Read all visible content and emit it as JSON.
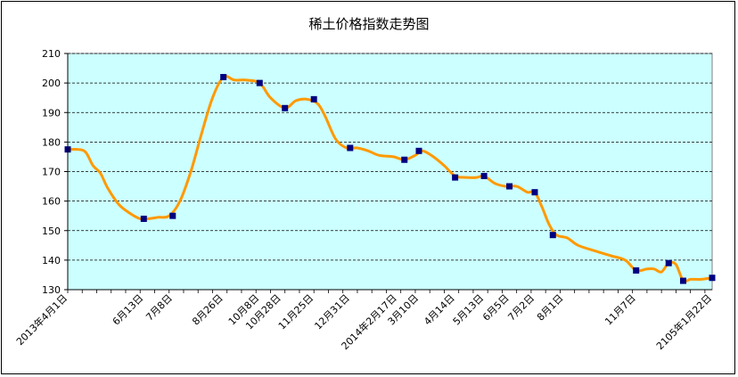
{
  "chart_data": {
    "type": "line",
    "title": "稀土价格指数走势图",
    "xlabel": "",
    "ylabel": "",
    "ylim": [
      130,
      210
    ],
    "yticks": [
      130,
      140,
      150,
      160,
      170,
      180,
      190,
      200,
      210
    ],
    "grid": "horizontal-dashed",
    "legend": "none",
    "colors": {
      "plot_bg": "#ccffff",
      "line": "#ff9900",
      "marker": "#000080",
      "grid": "#000000"
    },
    "num_points": 179,
    "x_tick_labels": [
      {
        "index": 0,
        "label": "2013年4月1日"
      },
      {
        "index": 21,
        "label": "6月13日"
      },
      {
        "index": 29,
        "label": "7月8日"
      },
      {
        "index": 43,
        "label": "8月26日"
      },
      {
        "index": 53,
        "label": "10月8日"
      },
      {
        "index": 59,
        "label": "10月28日"
      },
      {
        "index": 68,
        "label": "11月25日"
      },
      {
        "index": 78,
        "label": "12月31日"
      },
      {
        "index": 91,
        "label": "2014年2月17日"
      },
      {
        "index": 97,
        "label": "3月10日"
      },
      {
        "index": 107,
        "label": "4月14日"
      },
      {
        "index": 115,
        "label": "5月13日"
      },
      {
        "index": 122,
        "label": "6月5日"
      },
      {
        "index": 129,
        "label": "7月2日"
      },
      {
        "index": 137,
        "label": "8月1日"
      },
      {
        "index": 157,
        "label": "11月7日"
      },
      {
        "index": 178,
        "label": "2105年1月22日"
      }
    ],
    "series": [
      {
        "values": [
          {
            "i": 0,
            "y": 177.5
          },
          {
            "i": 3,
            "y": 177.5
          },
          {
            "i": 5,
            "y": 176.5
          },
          {
            "i": 7,
            "y": 172
          },
          {
            "i": 9,
            "y": 169.5
          },
          {
            "i": 11,
            "y": 164.5
          },
          {
            "i": 14,
            "y": 159
          },
          {
            "i": 17,
            "y": 156
          },
          {
            "i": 20,
            "y": 154
          },
          {
            "i": 22,
            "y": 154
          },
          {
            "i": 25,
            "y": 154.5
          },
          {
            "i": 28,
            "y": 155
          },
          {
            "i": 31,
            "y": 160
          },
          {
            "i": 34,
            "y": 170
          },
          {
            "i": 37,
            "y": 183
          },
          {
            "i": 40,
            "y": 195
          },
          {
            "i": 43,
            "y": 202
          },
          {
            "i": 46,
            "y": 201
          },
          {
            "i": 49,
            "y": 201
          },
          {
            "i": 53,
            "y": 200
          },
          {
            "i": 56,
            "y": 195
          },
          {
            "i": 60,
            "y": 191.5
          },
          {
            "i": 63,
            "y": 194
          },
          {
            "i": 66,
            "y": 194.5
          },
          {
            "i": 69,
            "y": 193
          },
          {
            "i": 71,
            "y": 189
          },
          {
            "i": 74,
            "y": 181
          },
          {
            "i": 77,
            "y": 178
          },
          {
            "i": 80,
            "y": 178
          },
          {
            "i": 83,
            "y": 177
          },
          {
            "i": 86,
            "y": 175.5
          },
          {
            "i": 90,
            "y": 175
          },
          {
            "i": 93,
            "y": 174
          },
          {
            "i": 96,
            "y": 175.5
          },
          {
            "i": 98,
            "y": 177
          },
          {
            "i": 101,
            "y": 175
          },
          {
            "i": 104,
            "y": 172
          },
          {
            "i": 107,
            "y": 168.5
          },
          {
            "i": 110,
            "y": 168
          },
          {
            "i": 113,
            "y": 168
          },
          {
            "i": 115,
            "y": 168.5
          },
          {
            "i": 118,
            "y": 166
          },
          {
            "i": 121,
            "y": 165
          },
          {
            "i": 124,
            "y": 165
          },
          {
            "i": 127,
            "y": 163
          },
          {
            "i": 129,
            "y": 163
          },
          {
            "i": 131,
            "y": 158
          },
          {
            "i": 133,
            "y": 152
          },
          {
            "i": 135,
            "y": 148.5
          },
          {
            "i": 138,
            "y": 147.5
          },
          {
            "i": 141,
            "y": 145
          },
          {
            "i": 146,
            "y": 143
          },
          {
            "i": 150,
            "y": 141.5
          },
          {
            "i": 154,
            "y": 140
          },
          {
            "i": 157,
            "y": 136.5
          },
          {
            "i": 160,
            "y": 137
          },
          {
            "i": 162,
            "y": 137
          },
          {
            "i": 164,
            "y": 136
          },
          {
            "i": 166,
            "y": 139
          },
          {
            "i": 168,
            "y": 138.5
          },
          {
            "i": 170,
            "y": 133
          },
          {
            "i": 172,
            "y": 133.5
          },
          {
            "i": 175,
            "y": 133.5
          },
          {
            "i": 178,
            "y": 134
          }
        ],
        "markers": [
          {
            "i": 0,
            "y": 177.5
          },
          {
            "i": 21,
            "y": 154
          },
          {
            "i": 29,
            "y": 155
          },
          {
            "i": 43,
            "y": 202
          },
          {
            "i": 53,
            "y": 200
          },
          {
            "i": 60,
            "y": 191.5
          },
          {
            "i": 68,
            "y": 194.5
          },
          {
            "i": 78,
            "y": 178
          },
          {
            "i": 93,
            "y": 174
          },
          {
            "i": 97,
            "y": 177
          },
          {
            "i": 107,
            "y": 168
          },
          {
            "i": 115,
            "y": 168.5
          },
          {
            "i": 122,
            "y": 165
          },
          {
            "i": 129,
            "y": 163
          },
          {
            "i": 134,
            "y": 148.5
          },
          {
            "i": 157,
            "y": 136.5
          },
          {
            "i": 166,
            "y": 139
          },
          {
            "i": 170,
            "y": 133
          },
          {
            "i": 178,
            "y": 134
          }
        ]
      }
    ]
  }
}
